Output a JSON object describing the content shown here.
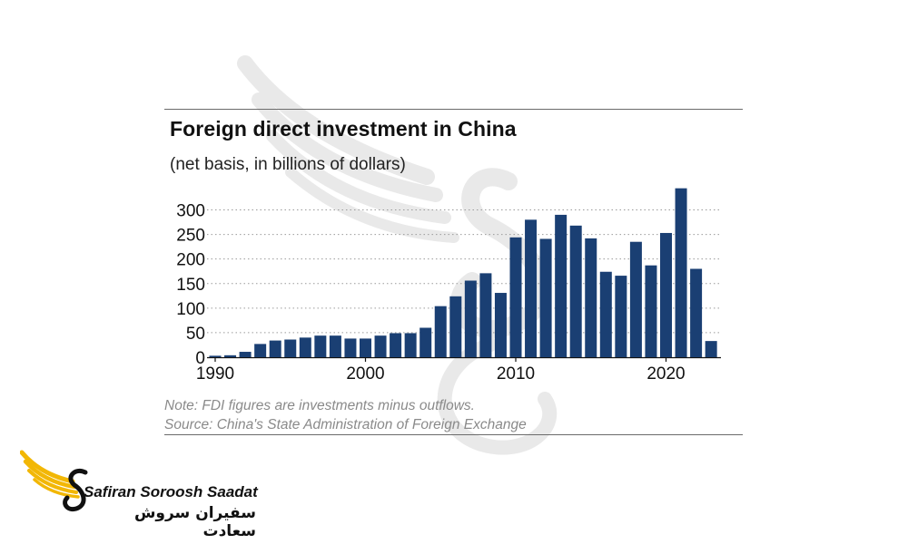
{
  "chart_data": {
    "type": "bar",
    "title": "Foreign direct investment in China",
    "subtitle": "(net basis, in billions of dollars)",
    "x": [
      1990,
      1991,
      1992,
      1993,
      1994,
      1995,
      1996,
      1997,
      1998,
      1999,
      2000,
      2001,
      2002,
      2003,
      2004,
      2005,
      2006,
      2007,
      2008,
      2009,
      2010,
      2011,
      2012,
      2013,
      2014,
      2015,
      2016,
      2017,
      2018,
      2019,
      2020,
      2021,
      2022,
      2023
    ],
    "values": [
      3,
      4,
      11,
      27,
      34,
      36,
      40,
      44,
      44,
      38,
      38,
      44,
      49,
      49,
      60,
      104,
      124,
      156,
      171,
      131,
      244,
      280,
      241,
      290,
      268,
      242,
      174,
      166,
      235,
      187,
      253,
      344,
      180,
      33
    ],
    "xticks": [
      1990,
      2000,
      2010,
      2020
    ],
    "yticks": [
      0,
      50,
      100,
      150,
      200,
      250,
      300
    ],
    "ylim": [
      0,
      350
    ],
    "grid": "horizontal dotted",
    "colors": {
      "bar": "#1a3f73",
      "grid": "#9a9a9a",
      "axis": "#111111"
    }
  },
  "notes": {
    "note": "Note: FDI figures are investments minus outflows.",
    "source": "Source: China's State Administration of Foreign Exchange"
  },
  "logo": {
    "name_en": "Safiran Soroosh Saadat",
    "name_fa": "سفیران سروش سعادت",
    "colors": {
      "gold": "#f2b705",
      "black": "#111111"
    }
  }
}
